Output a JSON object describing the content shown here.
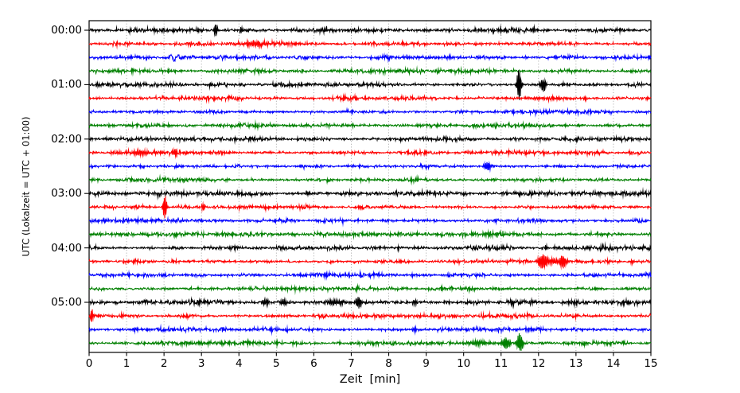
{
  "chart_data": {
    "type": "line",
    "subtype": "seismogram-helicorder",
    "title": "",
    "xlabel": "Zeit  [min]",
    "ylabel": "UTC (Lokalzeit = UTC + 01:00)",
    "xlim": [
      0,
      15
    ],
    "minutes_per_row": 15,
    "rows_per_hour": 4,
    "grid": "vertical-dotted-every-minute",
    "legend": "none",
    "x_ticks": [
      "0",
      "1",
      "2",
      "3",
      "4",
      "5",
      "6",
      "7",
      "8",
      "9",
      "10",
      "11",
      "12",
      "13",
      "14",
      "15"
    ],
    "y_tick_labels": [
      "00:00",
      "01:00",
      "02:00",
      "03:00",
      "04:00",
      "05:00"
    ],
    "trace_color_cycle": [
      "#000000",
      "#ff0000",
      "#0000ff",
      "#008000"
    ],
    "grid_color": "#999999",
    "background_color": "#ffffff",
    "traces": [
      {
        "start": "00:00",
        "color": "#000000",
        "noise": 1.3,
        "events": [
          {
            "t": 3.38,
            "a": 8,
            "w": 0.035
          },
          {
            "t": 4.06,
            "a": 4,
            "w": 0.03
          },
          {
            "t": 6.26,
            "a": 2.5,
            "w": 0.12
          },
          {
            "t": 11.87,
            "a": 3,
            "w": 0.03
          }
        ]
      },
      {
        "start": "00:15",
        "color": "#ff0000",
        "noise": 1.2,
        "events": [
          {
            "t": 4.5,
            "a": 2.6,
            "w": 0.35
          }
        ]
      },
      {
        "start": "00:30",
        "color": "#0000ff",
        "noise": 1.2,
        "events": [
          {
            "t": 2.27,
            "a": 4,
            "w": 0.1,
            "f": 5
          },
          {
            "t": 7.96,
            "a": 2.5,
            "w": 0.06
          }
        ]
      },
      {
        "start": "00:45",
        "color": "#008000",
        "noise": 1.2,
        "events": []
      },
      {
        "start": "01:00",
        "color": "#000000",
        "noise": 1.3,
        "events": [
          {
            "t": 3.25,
            "a": 2.5,
            "w": 0.03
          },
          {
            "t": 11.48,
            "a": 22,
            "w": 0.04
          },
          {
            "t": 12.13,
            "a": 9,
            "w": 0.05
          }
        ]
      },
      {
        "start": "01:15",
        "color": "#ff0000",
        "noise": 1.2,
        "events": [
          {
            "t": 3.2,
            "a": 2.5,
            "w": 0.025
          },
          {
            "t": 11.9,
            "a": 1.3,
            "w": 0.6
          }
        ]
      },
      {
        "start": "01:30",
        "color": "#0000ff",
        "noise": 1.2,
        "events": []
      },
      {
        "start": "01:45",
        "color": "#008000",
        "noise": 1.2,
        "events": []
      },
      {
        "start": "02:00",
        "color": "#000000",
        "noise": 1.3,
        "events": []
      },
      {
        "start": "02:15",
        "color": "#ff0000",
        "noise": 1.2,
        "events": [
          {
            "t": 1.4,
            "a": 2.8,
            "w": 0.3
          },
          {
            "t": 2.3,
            "a": 6,
            "w": 0.05
          }
        ]
      },
      {
        "start": "02:30",
        "color": "#0000ff",
        "noise": 1.2,
        "events": [
          {
            "t": 10.64,
            "a": 6,
            "w": 0.07
          }
        ]
      },
      {
        "start": "02:45",
        "color": "#008000",
        "noise": 1.2,
        "events": [
          {
            "t": 8.7,
            "a": 2,
            "w": 0.12
          }
        ]
      },
      {
        "start": "03:00",
        "color": "#000000",
        "noise": 1.3,
        "events": []
      },
      {
        "start": "03:15",
        "color": "#ff0000",
        "noise": 1.2,
        "events": [
          {
            "t": 2.02,
            "a": 16,
            "w": 0.04
          },
          {
            "t": 3.05,
            "a": 4,
            "w": 0.04
          }
        ]
      },
      {
        "start": "03:30",
        "color": "#0000ff",
        "noise": 1.2,
        "events": []
      },
      {
        "start": "03:45",
        "color": "#008000",
        "noise": 1.2,
        "events": [
          {
            "t": 10.7,
            "a": 2,
            "w": 0.2
          }
        ]
      },
      {
        "start": "04:00",
        "color": "#000000",
        "noise": 1.3,
        "events": [
          {
            "t": 12.2,
            "a": 2.5,
            "w": 0.04
          }
        ]
      },
      {
        "start": "04:15",
        "color": "#ff0000",
        "noise": 1.2,
        "events": [
          {
            "t": 12.1,
            "a": 10,
            "w": 0.08
          },
          {
            "t": 12.4,
            "a": 4,
            "w": 0.12
          },
          {
            "t": 12.66,
            "a": 8,
            "w": 0.07
          },
          {
            "t": 14.5,
            "a": 2.5,
            "w": 0.04
          }
        ]
      },
      {
        "start": "04:30",
        "color": "#0000ff",
        "noise": 1.2,
        "events": []
      },
      {
        "start": "04:45",
        "color": "#008000",
        "noise": 1.2,
        "events": [
          {
            "t": 7.15,
            "a": 2.5,
            "w": 0.03
          }
        ]
      },
      {
        "start": "05:00",
        "color": "#000000",
        "noise": 1.3,
        "events": [
          {
            "t": 4.7,
            "a": 4,
            "w": 0.08
          },
          {
            "t": 5.2,
            "a": 3.5,
            "w": 0.07
          },
          {
            "t": 6.6,
            "a": 2.8,
            "w": 0.25
          },
          {
            "t": 7.2,
            "a": 8,
            "w": 0.05
          },
          {
            "t": 8.7,
            "a": 3,
            "w": 0.06
          },
          {
            "t": 11.3,
            "a": 4,
            "w": 0.04
          },
          {
            "t": 14.2,
            "a": 2.5,
            "w": 0.03
          }
        ]
      },
      {
        "start": "05:15",
        "color": "#ff0000",
        "noise": 1.2,
        "events": [
          {
            "t": 0.07,
            "a": 10,
            "w": 0.025
          }
        ]
      },
      {
        "start": "05:30",
        "color": "#0000ff",
        "noise": 1.2,
        "events": [
          {
            "t": 8.7,
            "a": 3,
            "w": 0.04
          }
        ]
      },
      {
        "start": "05:45",
        "color": "#008000",
        "noise": 1.2,
        "events": [
          {
            "t": 10.4,
            "a": 2.2,
            "w": 0.3
          },
          {
            "t": 11.13,
            "a": 7,
            "w": 0.08
          },
          {
            "t": 11.5,
            "a": 12,
            "w": 0.06
          }
        ]
      }
    ]
  }
}
